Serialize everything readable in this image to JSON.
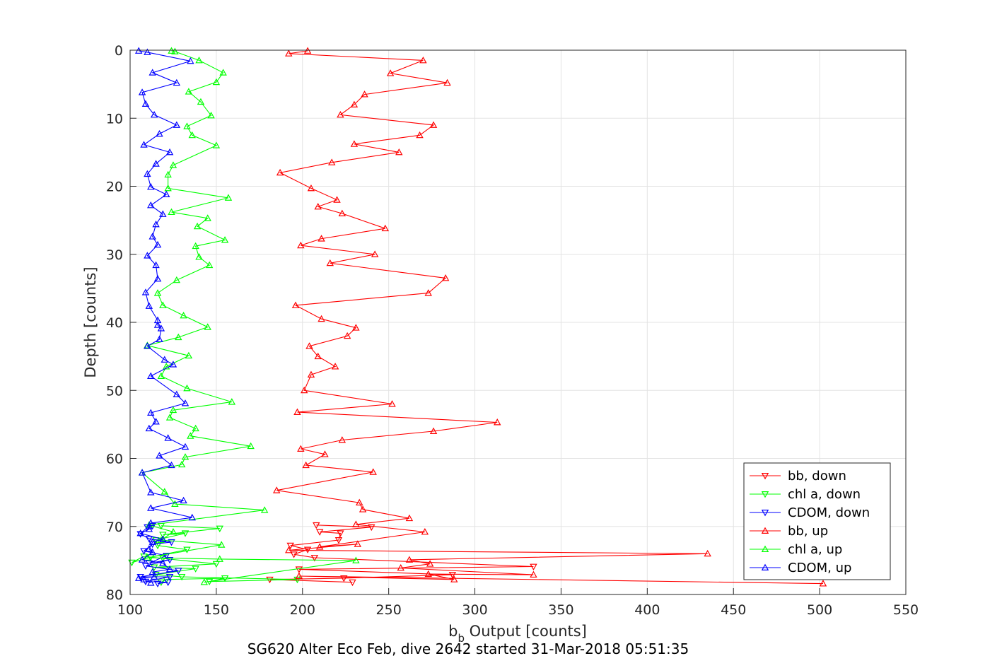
{
  "chart_data": {
    "type": "line",
    "xlabel_main": "b",
    "xlabel_sub": "b",
    "xlabel_rest": " Output [counts]",
    "ylabel": "Depth [counts]",
    "caption": "SG620 Alter Eco Feb, dive 2642 started 31-Mar-2018 05:51:35",
    "xlim": [
      100,
      550
    ],
    "ylim": [
      0,
      80
    ],
    "y_reversed": true,
    "grid": true,
    "legend_position": "bottom-right",
    "xticks": [
      "100",
      "150",
      "200",
      "250",
      "300",
      "350",
      "400",
      "450",
      "500",
      "550"
    ],
    "yticks": [
      "0",
      "10",
      "20",
      "30",
      "40",
      "50",
      "60",
      "70",
      "80"
    ],
    "series": [
      {
        "name": "bb, down",
        "color": "#ff0000",
        "marker": "triangle-down",
        "points": [
          [
            229,
            78.2
          ],
          [
            181,
            77.8
          ],
          [
            224,
            77.6
          ],
          [
            287,
            77.1
          ],
          [
            198,
            76.3
          ],
          [
            334,
            75.9
          ],
          [
            207,
            74.6
          ],
          [
            195,
            74.1
          ],
          [
            203,
            73.4
          ],
          [
            193,
            72.8
          ],
          [
            221,
            72.0
          ],
          [
            222,
            71.0
          ],
          [
            210,
            70.8
          ],
          [
            240,
            70.1
          ],
          [
            208,
            69.8
          ]
        ]
      },
      {
        "name": "chl a, down",
        "color": "#00ff00",
        "marker": "triangle-down",
        "points": [
          [
            118,
            78.2
          ],
          [
            121,
            77.8
          ],
          [
            155,
            77.6
          ],
          [
            146,
            78.1
          ],
          [
            197,
            77.8
          ],
          [
            130,
            77.4
          ],
          [
            115,
            77.1
          ],
          [
            138,
            76.2
          ],
          [
            114,
            76.0
          ],
          [
            150,
            75.5
          ],
          [
            119,
            74.7
          ],
          [
            108,
            74.4
          ],
          [
            101,
            75.3
          ],
          [
            112,
            74.5
          ],
          [
            133,
            73.4
          ],
          [
            116,
            72.8
          ],
          [
            115,
            72.0
          ],
          [
            132,
            71.0
          ],
          [
            119,
            71.2
          ],
          [
            152,
            70.3
          ],
          [
            118,
            69.9
          ]
        ]
      },
      {
        "name": "CDOM, down",
        "color": "#0000ff",
        "marker": "triangle-down",
        "points": [
          [
            116,
            78.4
          ],
          [
            122,
            78.2
          ],
          [
            109,
            78.1
          ],
          [
            123,
            77.4
          ],
          [
            106,
            77.4
          ],
          [
            128,
            76.5
          ],
          [
            109,
            75.8
          ],
          [
            123,
            74.9
          ],
          [
            111,
            75.4
          ],
          [
            121,
            74.3
          ],
          [
            108,
            73.6
          ],
          [
            113,
            72.6
          ],
          [
            124,
            72.3
          ],
          [
            111,
            71.8
          ],
          [
            106,
            71.1
          ],
          [
            110,
            70.1
          ],
          [
            113,
            69.9
          ]
        ]
      },
      {
        "name": "bb, up",
        "color": "#ff0000",
        "marker": "triangle-up",
        "points": [
          [
            502,
            78.4
          ],
          [
            198,
            77.3
          ],
          [
            288,
            77.8
          ],
          [
            273,
            77.0
          ],
          [
            334,
            77.1
          ],
          [
            257,
            76.1
          ],
          [
            274,
            75.5
          ],
          [
            262,
            74.9
          ],
          [
            435,
            74.0
          ],
          [
            192,
            73.5
          ],
          [
            232,
            72.6
          ],
          [
            210,
            73.0
          ],
          [
            271,
            70.8
          ],
          [
            231,
            69.7
          ],
          [
            262,
            68.8
          ],
          [
            235,
            67.5
          ],
          [
            233,
            66.5
          ],
          [
            185,
            64.7
          ],
          [
            241,
            62.0
          ],
          [
            202,
            61.0
          ],
          [
            213,
            59.4
          ],
          [
            199,
            58.6
          ],
          [
            223,
            57.3
          ],
          [
            276,
            56.0
          ],
          [
            313,
            54.7
          ],
          [
            197,
            53.2
          ],
          [
            252,
            52.0
          ],
          [
            201,
            50.0
          ],
          [
            205,
            47.7
          ],
          [
            219,
            46.5
          ],
          [
            209,
            45.0
          ],
          [
            204,
            43.5
          ],
          [
            226,
            42.0
          ],
          [
            231,
            40.8
          ],
          [
            211,
            39.5
          ],
          [
            196,
            37.5
          ],
          [
            273,
            35.7
          ],
          [
            283,
            33.5
          ],
          [
            216,
            31.3
          ],
          [
            242,
            30.0
          ],
          [
            199,
            28.7
          ],
          [
            211,
            27.7
          ],
          [
            248,
            26.2
          ],
          [
            223,
            24.0
          ],
          [
            209,
            23.0
          ],
          [
            220,
            22.0
          ],
          [
            205,
            20.3
          ],
          [
            187,
            18.0
          ],
          [
            217,
            16.5
          ],
          [
            256,
            15.0
          ],
          [
            230,
            13.8
          ],
          [
            268,
            12.5
          ],
          [
            276,
            11.0
          ],
          [
            222,
            9.5
          ],
          [
            230,
            8.0
          ],
          [
            236,
            6.5
          ],
          [
            284,
            4.8
          ],
          [
            251,
            3.4
          ],
          [
            270,
            1.5
          ],
          [
            192,
            0.5
          ],
          [
            203,
            0.1
          ]
        ]
      },
      {
        "name": "chl a, up",
        "color": "#00ff00",
        "marker": "triangle-up",
        "points": [
          [
            143,
            78.2
          ],
          [
            231,
            75.0
          ],
          [
            152,
            74.8
          ],
          [
            110,
            74.6
          ],
          [
            153,
            72.7
          ],
          [
            118,
            72.0
          ],
          [
            125,
            70.8
          ],
          [
            111,
            69.8
          ],
          [
            178,
            67.6
          ],
          [
            126,
            66.7
          ],
          [
            120,
            64.9
          ],
          [
            107,
            62.1
          ],
          [
            130,
            60.9
          ],
          [
            132,
            59.8
          ],
          [
            170,
            58.2
          ],
          [
            135,
            56.7
          ],
          [
            138,
            55.6
          ],
          [
            123,
            54.0
          ],
          [
            125,
            52.9
          ],
          [
            159,
            51.7
          ],
          [
            133,
            49.7
          ],
          [
            118,
            47.9
          ],
          [
            121,
            46.5
          ],
          [
            134,
            44.9
          ],
          [
            110,
            43.4
          ],
          [
            128,
            42.2
          ],
          [
            145,
            40.7
          ],
          [
            131,
            39.0
          ],
          [
            119,
            37.5
          ],
          [
            116,
            35.7
          ],
          [
            127,
            33.8
          ],
          [
            146,
            31.6
          ],
          [
            140,
            30.4
          ],
          [
            138,
            28.8
          ],
          [
            155,
            27.9
          ],
          [
            139,
            25.9
          ],
          [
            145,
            24.7
          ],
          [
            124,
            23.8
          ],
          [
            157,
            21.7
          ],
          [
            122,
            20.3
          ],
          [
            122,
            18.3
          ],
          [
            125,
            16.9
          ],
          [
            150,
            14.0
          ],
          [
            136,
            12.5
          ],
          [
            133,
            11.2
          ],
          [
            147,
            9.6
          ],
          [
            141,
            7.6
          ],
          [
            134,
            6.1
          ],
          [
            150,
            4.7
          ],
          [
            154,
            3.3
          ],
          [
            140,
            1.5
          ],
          [
            126,
            0.2
          ],
          [
            124,
            0.1
          ]
        ]
      },
      {
        "name": "CDOM, up",
        "color": "#0000ff",
        "marker": "triangle-up",
        "points": [
          [
            112,
            78.3
          ],
          [
            108,
            77.8
          ],
          [
            105,
            77.6
          ],
          [
            114,
            77.4
          ],
          [
            113,
            76.7
          ],
          [
            123,
            76.3
          ],
          [
            119,
            75.4
          ],
          [
            107,
            74.9
          ],
          [
            113,
            73.8
          ],
          [
            111,
            73.3
          ],
          [
            113,
            72.3
          ],
          [
            119,
            71.9
          ],
          [
            106,
            71.0
          ],
          [
            111,
            70.4
          ],
          [
            111,
            70.0
          ],
          [
            112,
            69.5
          ],
          [
            136,
            68.7
          ],
          [
            112,
            67.3
          ],
          [
            131,
            66.2
          ],
          [
            112,
            65.0
          ],
          [
            107,
            62.1
          ],
          [
            124,
            61.0
          ],
          [
            117,
            59.6
          ],
          [
            132,
            58.3
          ],
          [
            122,
            57.0
          ],
          [
            111,
            55.6
          ],
          [
            115,
            54.6
          ],
          [
            112,
            53.3
          ],
          [
            132,
            51.9
          ],
          [
            127,
            50.6
          ],
          [
            112,
            47.9
          ],
          [
            125,
            46.2
          ],
          [
            120,
            45.5
          ],
          [
            110,
            43.5
          ],
          [
            117,
            42.5
          ],
          [
            118,
            40.9
          ],
          [
            116,
            40.4
          ],
          [
            116,
            39.7
          ],
          [
            111,
            37.6
          ],
          [
            109,
            35.6
          ],
          [
            116,
            33.6
          ],
          [
            115,
            31.6
          ],
          [
            110,
            30.2
          ],
          [
            116,
            28.6
          ],
          [
            113,
            27.4
          ],
          [
            115,
            25.6
          ],
          [
            119,
            24.1
          ],
          [
            112,
            22.8
          ],
          [
            121,
            21.2
          ],
          [
            112,
            20.1
          ],
          [
            110,
            18.2
          ],
          [
            115,
            16.7
          ],
          [
            123,
            15.0
          ],
          [
            108,
            13.9
          ],
          [
            117,
            12.3
          ],
          [
            127,
            11.0
          ],
          [
            114,
            9.5
          ],
          [
            109,
            7.9
          ],
          [
            107,
            6.2
          ],
          [
            127,
            4.8
          ],
          [
            113,
            3.3
          ],
          [
            135,
            1.6
          ],
          [
            110,
            0.3
          ],
          [
            105,
            0.1
          ]
        ]
      }
    ]
  }
}
